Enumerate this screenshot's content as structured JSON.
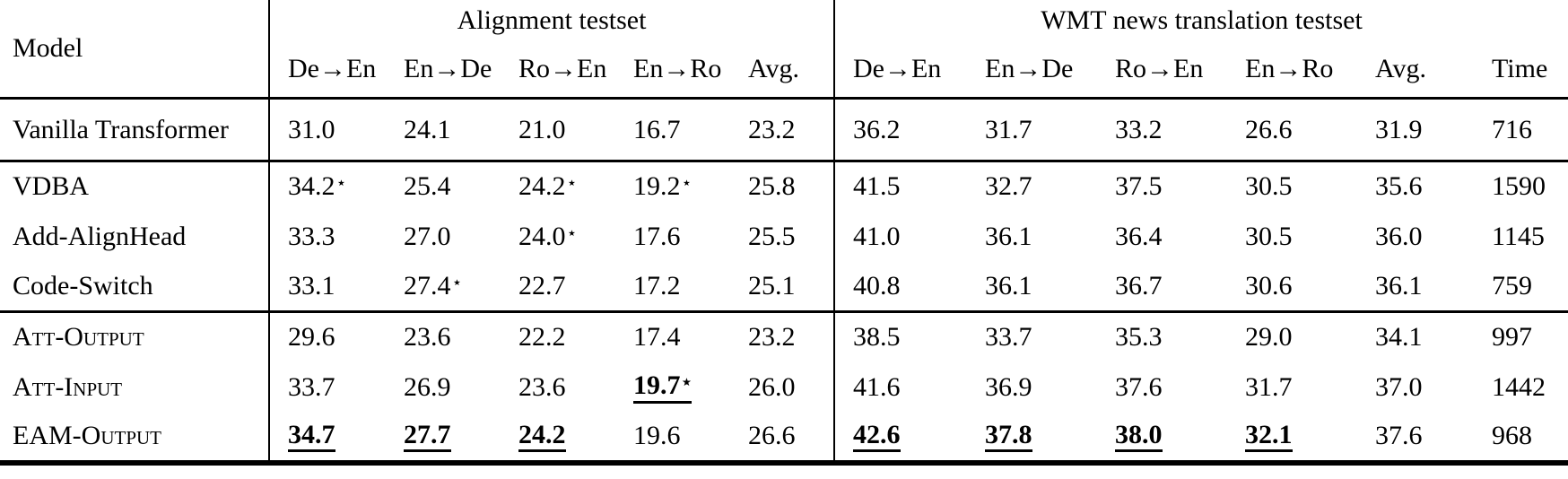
{
  "colors": {
    "text": "#000000",
    "background": "#ffffff",
    "rule": "#000000"
  },
  "table": {
    "star_symbol": "⋆",
    "header": {
      "model_label": "Model",
      "groups": [
        {
          "label": "Alignment testset",
          "cols": [
            "De→En",
            "En→De",
            "Ro→En",
            "En→Ro",
            "Avg."
          ]
        },
        {
          "label": "WMT news translation testset",
          "cols": [
            "De→En",
            "En→De",
            "Ro→En",
            "En→Ro",
            "Avg.",
            "Time"
          ]
        }
      ]
    },
    "row_groups": [
      {
        "rows": [
          {
            "model": "Vanilla Transformer",
            "smallcaps": false,
            "align": [
              {
                "value": "31.0"
              },
              {
                "value": "24.1"
              },
              {
                "value": "21.0"
              },
              {
                "value": "16.7"
              },
              {
                "value": "23.2"
              }
            ],
            "wmt": [
              {
                "value": "36.2"
              },
              {
                "value": "31.7"
              },
              {
                "value": "33.2"
              },
              {
                "value": "26.6"
              },
              {
                "value": "31.9"
              },
              {
                "value": "716"
              }
            ]
          }
        ]
      },
      {
        "rows": [
          {
            "model": "VDBA",
            "smallcaps": false,
            "align": [
              {
                "value": "34.2",
                "star": true
              },
              {
                "value": "25.4"
              },
              {
                "value": "24.2",
                "star": true
              },
              {
                "value": "19.2",
                "star": true
              },
              {
                "value": "25.8"
              }
            ],
            "wmt": [
              {
                "value": "41.5"
              },
              {
                "value": "32.7"
              },
              {
                "value": "37.5"
              },
              {
                "value": "30.5"
              },
              {
                "value": "35.6"
              },
              {
                "value": "1590"
              }
            ]
          },
          {
            "model": "Add-AlignHead",
            "smallcaps": false,
            "align": [
              {
                "value": "33.3"
              },
              {
                "value": "27.0"
              },
              {
                "value": "24.0",
                "star": true
              },
              {
                "value": "17.6"
              },
              {
                "value": "25.5"
              }
            ],
            "wmt": [
              {
                "value": "41.0"
              },
              {
                "value": "36.1"
              },
              {
                "value": "36.4"
              },
              {
                "value": "30.5"
              },
              {
                "value": "36.0"
              },
              {
                "value": "1145"
              }
            ]
          },
          {
            "model": "Code-Switch",
            "smallcaps": false,
            "align": [
              {
                "value": "33.1"
              },
              {
                "value": "27.4",
                "star": true
              },
              {
                "value": "22.7"
              },
              {
                "value": "17.2"
              },
              {
                "value": "25.1"
              }
            ],
            "wmt": [
              {
                "value": "40.8"
              },
              {
                "value": "36.1"
              },
              {
                "value": "36.7"
              },
              {
                "value": "30.6"
              },
              {
                "value": "36.1"
              },
              {
                "value": "759"
              }
            ]
          }
        ]
      },
      {
        "rows": [
          {
            "model": "Att-Output",
            "smallcaps": true,
            "align": [
              {
                "value": "29.6"
              },
              {
                "value": "23.6"
              },
              {
                "value": "22.2"
              },
              {
                "value": "17.4"
              },
              {
                "value": "23.2"
              }
            ],
            "wmt": [
              {
                "value": "38.5"
              },
              {
                "value": "33.7"
              },
              {
                "value": "35.3"
              },
              {
                "value": "29.0"
              },
              {
                "value": "34.1"
              },
              {
                "value": "997"
              }
            ]
          },
          {
            "model": "Att-Input",
            "smallcaps": true,
            "align": [
              {
                "value": "33.7"
              },
              {
                "value": "26.9"
              },
              {
                "value": "23.6"
              },
              {
                "value": "19.7",
                "star": true,
                "bold_underline": true
              },
              {
                "value": "26.0"
              }
            ],
            "wmt": [
              {
                "value": "41.6"
              },
              {
                "value": "36.9"
              },
              {
                "value": "37.6"
              },
              {
                "value": "31.7"
              },
              {
                "value": "37.0"
              },
              {
                "value": "1442"
              }
            ]
          },
          {
            "model": "EAM-Output",
            "smallcaps": true,
            "align": [
              {
                "value": "34.7",
                "bold_underline": true
              },
              {
                "value": "27.7",
                "bold_underline": true
              },
              {
                "value": "24.2",
                "bold_underline": true
              },
              {
                "value": "19.6"
              },
              {
                "value": "26.6"
              }
            ],
            "wmt": [
              {
                "value": "42.6",
                "bold_underline": true
              },
              {
                "value": "37.8",
                "bold_underline": true
              },
              {
                "value": "38.0",
                "bold_underline": true
              },
              {
                "value": "32.1",
                "bold_underline": true
              },
              {
                "value": "37.6"
              },
              {
                "value": "968"
              }
            ]
          }
        ]
      }
    ]
  }
}
